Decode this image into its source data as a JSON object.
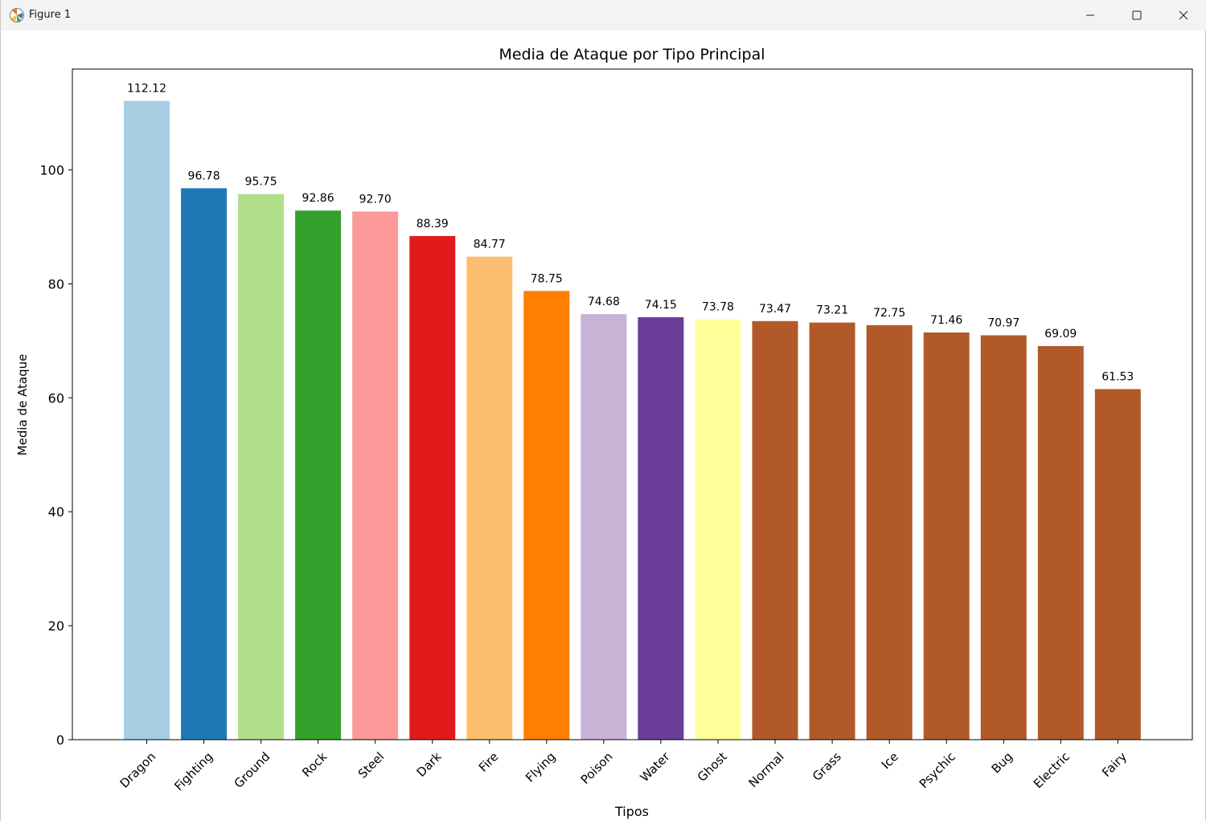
{
  "window": {
    "title": "Figure 1",
    "icons": {
      "app": "matplotlib-icon",
      "minimize": "minimize-icon",
      "maximize": "maximize-icon",
      "close": "close-icon"
    }
  },
  "chart_data": {
    "type": "bar",
    "title": "Media de Ataque por Tipo Principal",
    "xlabel": "Tipos",
    "ylabel": "Media de Ataque",
    "categories": [
      "Dragon",
      "Fighting",
      "Ground",
      "Rock",
      "Steel",
      "Dark",
      "Fire",
      "Flying",
      "Poison",
      "Water",
      "Ghost",
      "Normal",
      "Grass",
      "Ice",
      "Psychic",
      "Bug",
      "Electric",
      "Fairy"
    ],
    "values": [
      112.12,
      96.78,
      95.75,
      92.86,
      92.7,
      88.39,
      84.77,
      78.75,
      74.68,
      74.15,
      73.78,
      73.47,
      73.21,
      72.75,
      71.46,
      70.97,
      69.09,
      61.53
    ],
    "value_labels": [
      "112.12",
      "96.78",
      "95.75",
      "92.86",
      "92.70",
      "88.39",
      "84.77",
      "78.75",
      "74.68",
      "74.15",
      "73.78",
      "73.47",
      "73.21",
      "72.75",
      "71.46",
      "70.97",
      "69.09",
      "61.53"
    ],
    "colors": [
      "#a6cee3",
      "#1f78b4",
      "#b2df8a",
      "#33a02c",
      "#fb9a99",
      "#e31a1c",
      "#fdbf6f",
      "#ff7f00",
      "#cab2d6",
      "#6a3d9a",
      "#ffff99",
      "#b15928",
      "#b15928",
      "#b15928",
      "#b15928",
      "#b15928",
      "#b15928",
      "#b15928"
    ],
    "yticks": [
      0,
      20,
      40,
      60,
      80,
      100
    ],
    "ylim": [
      0,
      117.7
    ],
    "grid": false,
    "legend": "none",
    "xtick_rotation_deg": 45
  }
}
